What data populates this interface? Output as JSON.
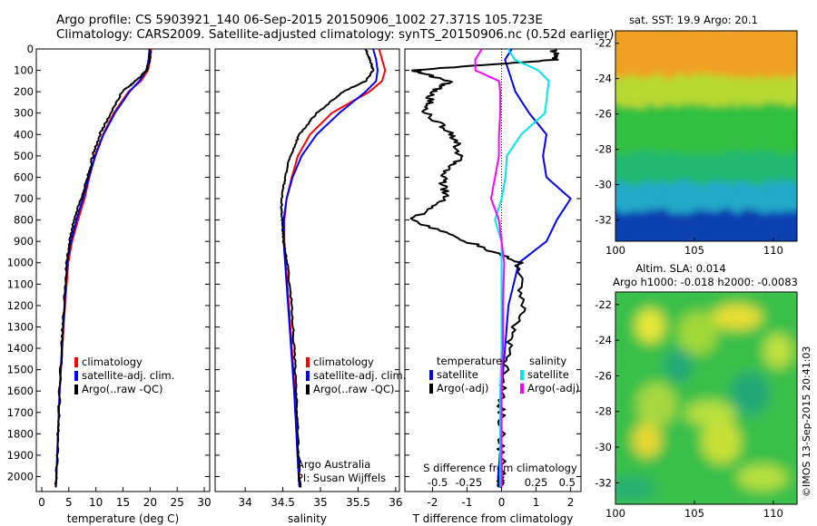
{
  "header": {
    "line1": "Argo profile: CS 5903921_140 06-Sep-2015 20150906_1002 27.371S 105.723E",
    "line2": "Climatology: CARS2009. Satellite-adjusted climatology: synTS_20150906.nc (0.52d earlier)"
  },
  "stamp": "©IMOS 13-Sep-2015 20:41:03",
  "credit": {
    "line1": "Argo Australia",
    "line2": "PI: Susan Wijffels"
  },
  "colors": {
    "climatology": "#ff0000",
    "satellite": "#0000ff",
    "argo": "#000000",
    "sat_salinity": "#00e5ee",
    "argo_salinity": "#ff00ff"
  },
  "chart_data": [
    {
      "type": "line",
      "name": "temperature",
      "xlabel": "temperature (deg C)",
      "ylabel": "",
      "xlim": [
        -1,
        31
      ],
      "ylim": [
        2070,
        0
      ],
      "xticks": [
        0,
        5,
        10,
        15,
        20,
        25,
        30
      ],
      "yticks": [
        0,
        100,
        200,
        300,
        400,
        500,
        600,
        700,
        800,
        900,
        1000,
        1100,
        1200,
        1300,
        1400,
        1500,
        1600,
        1700,
        1800,
        1900,
        2000
      ],
      "legend": [
        "climatology",
        "satellite-adj. clim.",
        "Argo(..raw -QC)"
      ],
      "series": [
        {
          "name": "climatology",
          "color": "#ff0000",
          "depth": [
            0,
            50,
            100,
            150,
            200,
            300,
            400,
            500,
            600,
            700,
            800,
            900,
            1000,
            1200,
            1400,
            1600,
            1800,
            2000,
            2050
          ],
          "values": [
            20.2,
            20.0,
            19.6,
            18.3,
            16.0,
            13.3,
            11.3,
            9.8,
            8.8,
            7.9,
            6.7,
            5.6,
            4.9,
            4.3,
            3.8,
            3.3,
            3.0,
            2.7,
            2.6
          ]
        },
        {
          "name": "satellite-adj. clim.",
          "color": "#0000ff",
          "depth": [
            0,
            50,
            100,
            150,
            200,
            300,
            400,
            500,
            600,
            700,
            800,
            900,
            1000,
            1200,
            1400,
            1600,
            1800,
            2000,
            2050
          ],
          "values": [
            19.9,
            19.7,
            19.3,
            18.0,
            16.2,
            13.5,
            11.4,
            9.9,
            8.7,
            7.6,
            6.4,
            5.4,
            4.7,
            4.2,
            3.7,
            3.3,
            3.0,
            2.7,
            2.6
          ]
        },
        {
          "name": "Argo(..raw -QC)",
          "color": "#000000",
          "depth": [
            0,
            50,
            100,
            150,
            200,
            300,
            400,
            500,
            600,
            700,
            800,
            900,
            1000,
            1200,
            1400,
            1600,
            1800,
            2000,
            2050
          ],
          "values": [
            20.1,
            19.9,
            19.4,
            17.3,
            14.8,
            12.7,
            10.7,
            9.4,
            8.5,
            7.3,
            6.0,
            5.1,
            4.6,
            4.1,
            3.7,
            3.3,
            3.0,
            2.7,
            2.6
          ]
        }
      ]
    },
    {
      "type": "line",
      "name": "salinity",
      "xlabel": "salinity",
      "xlim": [
        33.6,
        36.05
      ],
      "ylim": [
        2070,
        0
      ],
      "xticks": [
        34,
        34.5,
        35,
        35.5,
        36
      ],
      "legend": [
        "climatology",
        "satellite-adj. clim.",
        "Argo(..raw -QC)"
      ],
      "series": [
        {
          "name": "climatology",
          "color": "#ff0000",
          "depth": [
            0,
            50,
            100,
            150,
            200,
            300,
            400,
            500,
            600,
            700,
            800,
            900,
            1000,
            1200,
            1400,
            1600,
            1800,
            2000,
            2050
          ],
          "values": [
            35.78,
            35.82,
            35.86,
            35.82,
            35.65,
            35.15,
            34.86,
            34.7,
            34.62,
            34.55,
            34.52,
            34.52,
            34.54,
            34.58,
            34.62,
            34.66,
            34.69,
            34.72,
            34.73
          ]
        },
        {
          "name": "satellite-adj. clim.",
          "color": "#0000ff",
          "depth": [
            0,
            50,
            100,
            150,
            200,
            300,
            400,
            500,
            600,
            700,
            800,
            900,
            1000,
            1200,
            1400,
            1600,
            1800,
            2000,
            2050
          ],
          "values": [
            35.7,
            35.74,
            35.76,
            35.74,
            35.6,
            35.25,
            34.95,
            34.75,
            34.63,
            34.55,
            34.51,
            34.51,
            34.53,
            34.57,
            34.61,
            34.65,
            34.68,
            34.71,
            34.72
          ]
        },
        {
          "name": "Argo(..raw -QC)",
          "color": "#000000",
          "depth": [
            0,
            50,
            100,
            150,
            200,
            300,
            400,
            500,
            600,
            700,
            800,
            900,
            1000,
            1200,
            1400,
            1600,
            1800,
            2000,
            2050
          ],
          "values": [
            35.6,
            35.66,
            35.7,
            35.6,
            35.3,
            34.95,
            34.72,
            34.6,
            34.53,
            34.48,
            34.49,
            34.51,
            34.56,
            34.62,
            34.65,
            34.68,
            34.7,
            34.72,
            34.73
          ]
        }
      ]
    },
    {
      "type": "line",
      "name": "difference",
      "xlabel": "T difference from climatology",
      "top_label": "S difference from climatology",
      "xlim": [
        -2.8,
        2.3
      ],
      "ylim": [
        2070,
        0
      ],
      "xticks": [
        -2,
        -1,
        0,
        1,
        2
      ],
      "top_ticks": [
        "-0.5",
        "-0.25",
        "0",
        "0.25",
        "0.5"
      ],
      "legend": {
        "temperature": [
          "satellite",
          "Argo(-adj)"
        ],
        "salinity": [
          "satellite",
          "Argo(-adj)"
        ]
      },
      "series": [
        {
          "name": "temperature satellite",
          "color": "#0000ff",
          "depth": [
            0,
            50,
            100,
            150,
            200,
            300,
            400,
            500,
            600,
            700,
            800,
            900,
            1000,
            1200,
            1400,
            1600,
            1800,
            2000,
            2050
          ],
          "values": [
            0.3,
            0.1,
            0.2,
            0.3,
            0.4,
            0.8,
            1.3,
            1.2,
            1.3,
            2.0,
            1.6,
            1.3,
            0.5,
            0.2,
            0.1,
            0.0,
            0.0,
            -0.1,
            -0.1
          ]
        },
        {
          "name": "temperature Argo(-adj)",
          "color": "#000000",
          "depth": [
            0,
            50,
            100,
            150,
            200,
            300,
            400,
            500,
            600,
            700,
            800,
            900,
            1000,
            1200,
            1400,
            1600,
            1800,
            2000,
            2050
          ],
          "values": [
            1.5,
            1.6,
            -2.6,
            -1.5,
            -2.0,
            -2.2,
            -1.4,
            -1.2,
            -1.7,
            -1.6,
            -2.6,
            -1.0,
            0.5,
            0.6,
            0.2,
            0.0,
            0.0,
            0.0,
            0.0
          ]
        },
        {
          "name": "salinity satellite",
          "color": "#00e5ee",
          "depth": [
            0,
            50,
            100,
            150,
            200,
            300,
            400,
            500,
            600,
            700,
            800,
            900,
            1000,
            1200,
            1400,
            1600,
            1800,
            2000,
            2050
          ],
          "values": [
            0.05,
            0.1,
            0.28,
            0.36,
            0.35,
            0.33,
            0.15,
            0.04,
            0.03,
            0.0,
            -0.05,
            0.0,
            0.0,
            0.0,
            0.0,
            -0.01,
            -0.01,
            -0.01,
            -0.01
          ]
        },
        {
          "name": "salinity Argo(-adj)",
          "color": "#ff00ff",
          "depth": [
            0,
            50,
            100,
            150,
            200,
            300,
            400,
            500,
            600,
            700,
            800,
            900,
            1000,
            1200,
            1400,
            1600,
            1800,
            2000,
            2050
          ],
          "values": [
            -0.15,
            -0.2,
            -0.2,
            -0.02,
            -0.01,
            -0.01,
            -0.02,
            -0.02,
            -0.05,
            -0.08,
            -0.02,
            0.0,
            0.02,
            0.01,
            0.01,
            0.0,
            0.0,
            0.0,
            0.0
          ]
        }
      ]
    },
    {
      "type": "heatmap",
      "name": "sst-map",
      "title": "sat. SST: 19.9 Argo: 20.1",
      "xticks": [
        100,
        105,
        110
      ],
      "yticks": [
        -22,
        -24,
        -26,
        -28,
        -30,
        -32
      ],
      "xlim": [
        100,
        111.5
      ],
      "ylim": [
        -33.2,
        -21.3
      ],
      "bands": [
        {
          "lat_from": -21.3,
          "lat_to": -24.2,
          "color": "#f0a020"
        },
        {
          "lat_from": -24.2,
          "lat_to": -25.8,
          "color": "#b8d830"
        },
        {
          "lat_from": -25.8,
          "lat_to": -28.5,
          "color": "#30c040"
        },
        {
          "lat_from": -28.5,
          "lat_to": -30.2,
          "color": "#20b870"
        },
        {
          "lat_from": -30.2,
          "lat_to": -31.8,
          "color": "#20a8c8"
        },
        {
          "lat_from": -31.8,
          "lat_to": -33.2,
          "color": "#1040b0"
        }
      ]
    },
    {
      "type": "heatmap",
      "name": "sla-map",
      "title": "Altim. SLA: 0.014",
      "subtitle": "Argo h1000: -0.018 h2000: -0.0083",
      "xticks": [
        100,
        105,
        110
      ],
      "yticks": [
        -22,
        -24,
        -26,
        -28,
        -30,
        -32
      ],
      "xlim": [
        100,
        111.5
      ],
      "ylim": [
        -33.2,
        -21.3
      ],
      "base_color": "#38c048",
      "blobs": [
        {
          "lon": 102.2,
          "lat": -23.2,
          "color": "#e8e838"
        },
        {
          "lon": 105.2,
          "lat": -23.6,
          "color": "#a0d838"
        },
        {
          "lon": 107.7,
          "lat": -22.7,
          "color": "#e8e030"
        },
        {
          "lon": 110.3,
          "lat": -24.6,
          "color": "#c0e040"
        },
        {
          "lon": 102.6,
          "lat": -27.6,
          "color": "#a8d840"
        },
        {
          "lon": 106.0,
          "lat": -28.1,
          "color": "#b8e040"
        },
        {
          "lon": 102.0,
          "lat": -29.6,
          "color": "#e8d830"
        },
        {
          "lon": 106.7,
          "lat": -29.7,
          "color": "#c8e038"
        },
        {
          "lon": 109.3,
          "lat": -31.7,
          "color": "#b8e040"
        },
        {
          "lon": 104.0,
          "lat": -25.4,
          "color": "#20a878"
        },
        {
          "lon": 108.5,
          "lat": -27.0,
          "color": "#20a878"
        },
        {
          "lon": 101.0,
          "lat": -32.3,
          "color": "#28b070"
        }
      ]
    }
  ]
}
